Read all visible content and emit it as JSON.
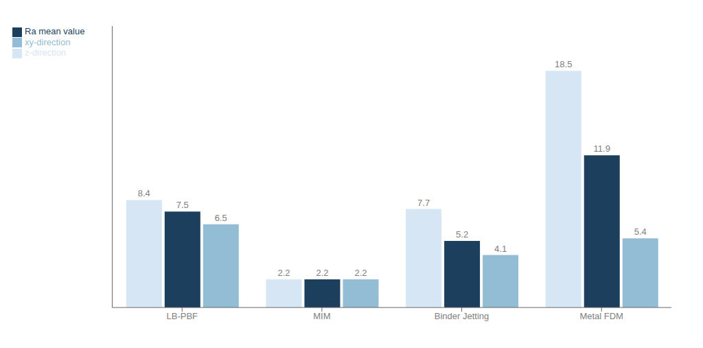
{
  "chart_data": {
    "type": "bar",
    "categories": [
      "LB-PBF",
      "MIM",
      "Binder Jetting",
      "Metal FDM"
    ],
    "series": [
      {
        "name": "z-direction",
        "color": "#d6e6f4",
        "values": [
          8.4,
          2.2,
          7.7,
          18.5
        ]
      },
      {
        "name": "Ra mean value",
        "color": "#1c3f5e",
        "values": [
          7.5,
          2.2,
          5.2,
          11.9
        ]
      },
      {
        "name": "xy-direction",
        "color": "#93bdd4",
        "values": [
          6.5,
          2.2,
          4.1,
          5.4
        ]
      }
    ],
    "ylim": [
      0,
      22
    ],
    "data_labels": true,
    "tick_labels": "x",
    "legend": "upper left",
    "grid": false
  }
}
